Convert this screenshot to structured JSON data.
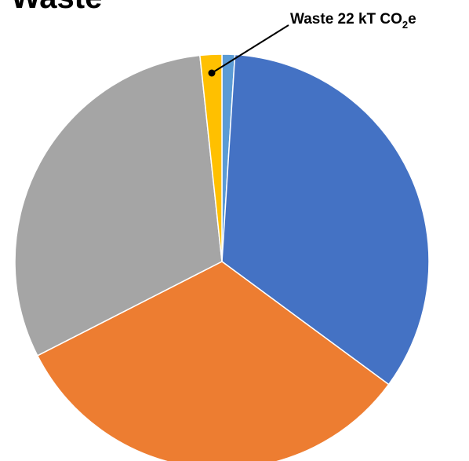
{
  "chart_data": {
    "type": "pie",
    "title": "Waste",
    "annotation": {
      "text": "Waste 22 kT CO",
      "subscript": "2",
      "suffix": "e"
    },
    "values": [
      1.0,
      34.1,
      32.4,
      30.8,
      1.7
    ],
    "colors": [
      "#5b9bd5",
      "#4472c4",
      "#ed7d31",
      "#a5a5a5",
      "#ffc000"
    ],
    "start_angle": 0
  }
}
